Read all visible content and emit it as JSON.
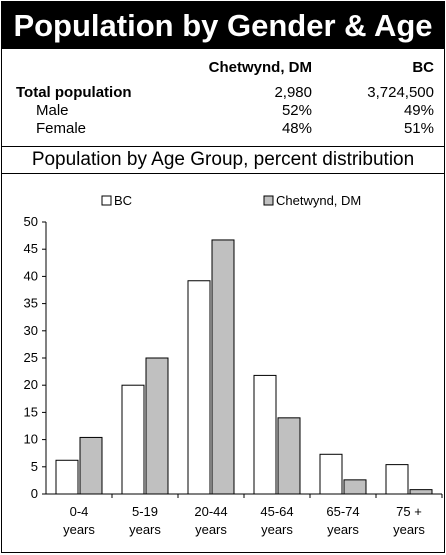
{
  "header": {
    "title": "Population by Gender & Age"
  },
  "stats": {
    "columns": {
      "local": "Chetwynd, DM",
      "province": "BC"
    },
    "rows": [
      {
        "label": "Total population",
        "local": "2,980",
        "province": "3,724,500"
      },
      {
        "label": "Male",
        "local": "52%",
        "province": "49%"
      },
      {
        "label": "Female",
        "local": "48%",
        "province": "51%"
      }
    ]
  },
  "chart_data": {
    "type": "bar",
    "title": "Population by Age Group, percent distribution",
    "categories": [
      [
        "0-4",
        "years"
      ],
      [
        "5-19",
        "years"
      ],
      [
        "20-44",
        "years"
      ],
      [
        "45-64",
        "years"
      ],
      [
        "65-74",
        "years"
      ],
      [
        "75 +",
        "years"
      ]
    ],
    "series": [
      {
        "name": "BC",
        "color": "#ffffff",
        "values": [
          6.2,
          20.0,
          39.2,
          21.8,
          7.3,
          5.4
        ]
      },
      {
        "name": "Chetwynd, DM",
        "color": "#c0c0c0",
        "values": [
          10.4,
          25.0,
          46.7,
          14.0,
          2.6,
          0.8
        ]
      }
    ],
    "ylim": [
      0,
      50
    ],
    "yticks": [
      0,
      5,
      10,
      15,
      20,
      25,
      30,
      35,
      40,
      45,
      50
    ],
    "legend": "top",
    "grid": false
  }
}
